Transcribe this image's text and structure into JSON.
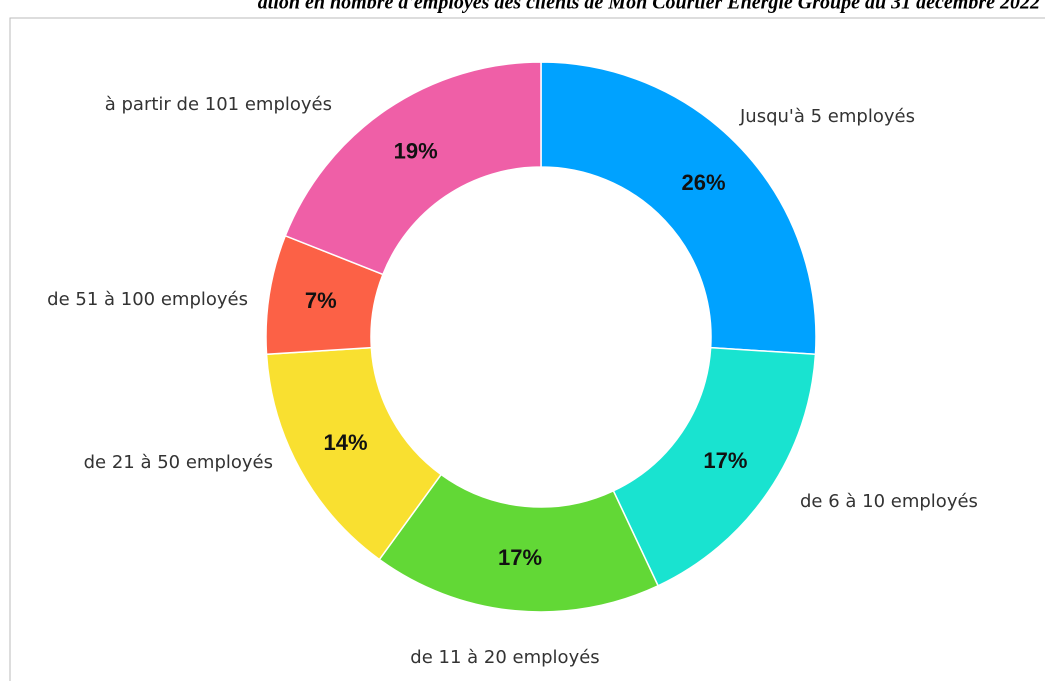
{
  "chart_data": {
    "type": "donut",
    "title": "ation en nombre d'employés des clients de Mon Courtier Energie Groupe au 31 décembre 2022",
    "categories": [
      "Jusqu'à 5 employés",
      "de 6 à 10 employés",
      "de 11 à 20 employés",
      "de 21 à 50 employés",
      "de 51 à 100 employés",
      "à partir de 101 employés"
    ],
    "values": [
      26,
      17,
      17,
      14,
      7,
      19
    ],
    "value_labels": [
      "26%",
      "17%",
      "17%",
      "14%",
      "7%",
      "19%"
    ],
    "colors": [
      "#00a2ff",
      "#19e3d0",
      "#62d836",
      "#f9e030",
      "#fc6146",
      "#ef5fa7"
    ]
  }
}
